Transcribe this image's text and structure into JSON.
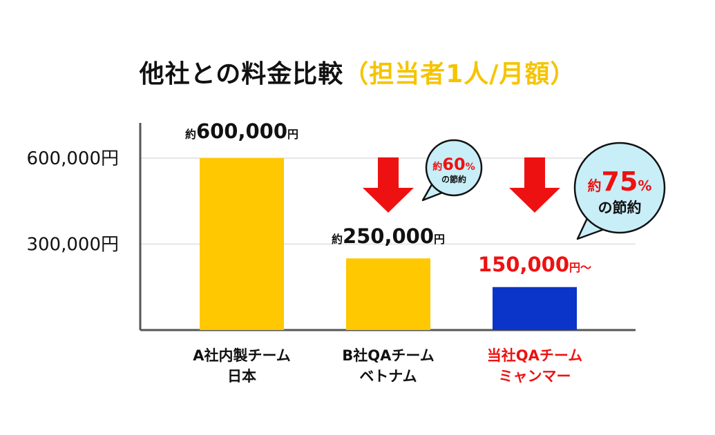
{
  "title": "他社との料金比較",
  "subtitle": "（担当者1人/月額）",
  "colors": {
    "accent_yellow": "#ffc800",
    "accent_blue": "#0a35c8",
    "accent_red": "#ee1111",
    "bubble_fill": "#c8eef7",
    "axis": "#555555",
    "grid": "#e6e6e6"
  },
  "chart_data": {
    "type": "bar",
    "categories": [
      [
        "A社内製チーム",
        "日本"
      ],
      [
        "B社QAチーム",
        "ベトナム"
      ],
      [
        "当社QAチーム",
        "ミャンマー"
      ]
    ],
    "values": [
      600000,
      250000,
      150000
    ],
    "bar_colors": [
      "#ffc800",
      "#ffc800",
      "#0a35c8"
    ],
    "category_colors": [
      "#111111",
      "#111111",
      "#ee1111"
    ],
    "yticks": [
      {
        "value": 600000,
        "label": "600,000円"
      },
      {
        "value": 300000,
        "label": "300,000円"
      }
    ],
    "ylim": [
      0,
      750000
    ],
    "grid": true,
    "value_labels": [
      {
        "prefix": "約",
        "main": "600,000",
        "suffix": "円",
        "color": "#111111"
      },
      {
        "prefix": "約",
        "main": "250,000",
        "suffix": "円",
        "color": "#111111"
      },
      {
        "prefix": "",
        "main": "150,000",
        "suffix": "円～",
        "color": "#ee1111"
      }
    ],
    "annotations": [
      {
        "type": "arrow",
        "bar_index": 1,
        "color": "#ee1111"
      },
      {
        "type": "arrow",
        "bar_index": 2,
        "color": "#ee1111"
      },
      {
        "type": "bubble",
        "prefix": "約",
        "value": "60",
        "unit": "%",
        "text": "の節約"
      },
      {
        "type": "bubble",
        "prefix": "約",
        "value": "75",
        "unit": "%",
        "text": "の節約"
      }
    ]
  }
}
